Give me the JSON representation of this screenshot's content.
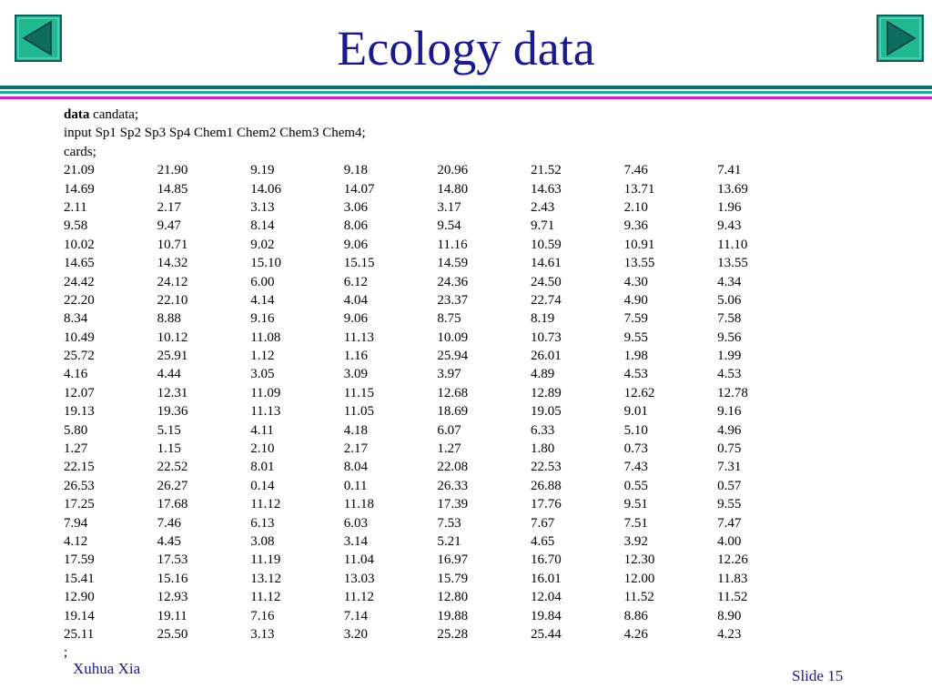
{
  "slide": {
    "title": "Ecology data",
    "author": "Xuhua Xia",
    "slide_number": "Slide 15"
  },
  "nav": {
    "prev_icon": "triangle-left-icon",
    "next_icon": "triangle-right-icon",
    "button_color": "#20b890",
    "arrow_color": "#0e5e5e"
  },
  "code": {
    "line1_keyword": "data",
    "line1_rest": " candata;",
    "line2": "input Sp1 Sp2 Sp3 Sp4 Chem1 Chem2 Chem3 Chem4;",
    "line3": "cards;",
    "end": ";",
    "rows": [
      [
        "21.09",
        "21.90",
        "9.19",
        "9.18",
        "20.96",
        "21.52",
        "7.46",
        "7.41"
      ],
      [
        "14.69",
        "14.85",
        "14.06",
        "14.07",
        "14.80",
        "14.63",
        "13.71",
        "13.69"
      ],
      [
        "2.11",
        "2.17",
        "3.13",
        "3.06",
        "3.17",
        "2.43",
        "2.10",
        "1.96"
      ],
      [
        "9.58",
        "9.47",
        "8.14",
        "8.06",
        "9.54",
        "9.71",
        "9.36",
        "9.43"
      ],
      [
        "10.02",
        "10.71",
        "9.02",
        "9.06",
        "11.16",
        "10.59",
        "10.91",
        "11.10"
      ],
      [
        "14.65",
        "14.32",
        "15.10",
        "15.15",
        "14.59",
        "14.61",
        "13.55",
        "13.55"
      ],
      [
        "24.42",
        "24.12",
        "6.00",
        "6.12",
        "24.36",
        "24.50",
        "4.30",
        "4.34"
      ],
      [
        "22.20",
        "22.10",
        "4.14",
        "4.04",
        "23.37",
        "22.74",
        "4.90",
        "5.06"
      ],
      [
        "8.34",
        "8.88",
        "9.16",
        "9.06",
        "8.75",
        "8.19",
        "7.59",
        "7.58"
      ],
      [
        "10.49",
        "10.12",
        "11.08",
        "11.13",
        "10.09",
        "10.73",
        "9.55",
        "9.56"
      ],
      [
        "25.72",
        "25.91",
        "1.12",
        "1.16",
        "25.94",
        "26.01",
        "1.98",
        "1.99"
      ],
      [
        "4.16",
        "4.44",
        "3.05",
        "3.09",
        "3.97",
        "4.89",
        "4.53",
        "4.53"
      ],
      [
        "12.07",
        "12.31",
        "11.09",
        "11.15",
        "12.68",
        "12.89",
        "12.62",
        "12.78"
      ],
      [
        "19.13",
        "19.36",
        "11.13",
        "11.05",
        "18.69",
        "19.05",
        "9.01",
        "9.16"
      ],
      [
        "5.80",
        "5.15",
        "4.11",
        "4.18",
        "6.07",
        "6.33",
        "5.10",
        "4.96"
      ],
      [
        "1.27",
        "1.15",
        "2.10",
        "2.17",
        "1.27",
        "1.80",
        "0.73",
        "0.75"
      ],
      [
        "22.15",
        "22.52",
        "8.01",
        "8.04",
        "22.08",
        "22.53",
        "7.43",
        "7.31"
      ],
      [
        "26.53",
        "26.27",
        "0.14",
        "0.11",
        "26.33",
        "26.88",
        "0.55",
        "0.57"
      ],
      [
        "17.25",
        "17.68",
        "11.12",
        "11.18",
        "17.39",
        "17.76",
        "9.51",
        "9.55"
      ],
      [
        "7.94",
        "7.46",
        "6.13",
        "6.03",
        "7.53",
        "7.67",
        "7.51",
        "7.47"
      ],
      [
        "4.12",
        "4.45",
        "3.08",
        "3.14",
        "5.21",
        "4.65",
        "3.92",
        "4.00"
      ],
      [
        "17.59",
        "17.53",
        "11.19",
        "11.04",
        "16.97",
        "16.70",
        "12.30",
        "12.26"
      ],
      [
        "15.41",
        "15.16",
        "13.12",
        "13.03",
        "15.79",
        "16.01",
        "12.00",
        "11.83"
      ],
      [
        "12.90",
        "12.93",
        "11.12",
        "11.12",
        "12.80",
        "12.04",
        "11.52",
        "11.52"
      ],
      [
        "19.14",
        "19.11",
        "7.16",
        "7.14",
        "19.88",
        "19.84",
        "8.86",
        "8.90"
      ],
      [
        "25.11",
        "25.50",
        "3.13",
        "3.20",
        "25.28",
        "25.44",
        "4.26",
        "4.23"
      ]
    ]
  }
}
